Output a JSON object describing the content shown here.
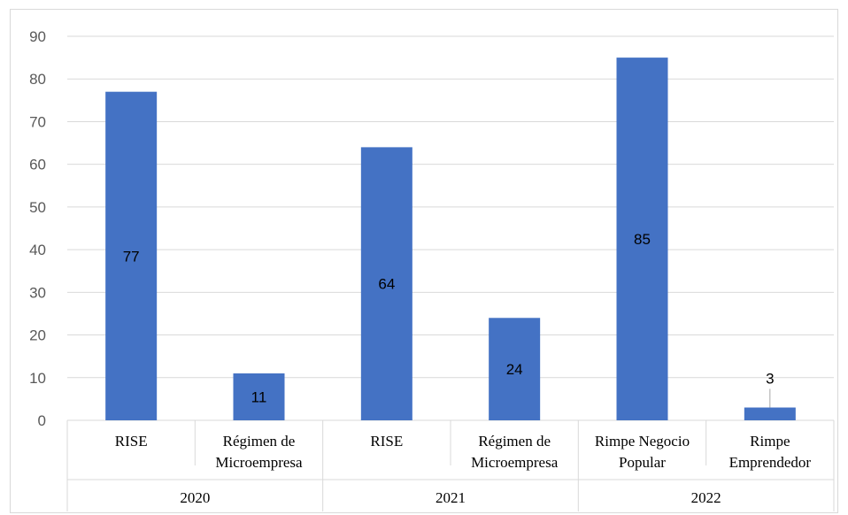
{
  "chart_data": {
    "type": "bar",
    "title": "",
    "xlabel": "",
    "ylabel": "",
    "ylim": [
      0,
      90
    ],
    "yticks": [
      0,
      10,
      20,
      30,
      40,
      50,
      60,
      70,
      80,
      90
    ],
    "grid": true,
    "bar_color": "#4472c4",
    "gridline_color": "#d9d9d9",
    "categories": [
      [
        "RISE"
      ],
      [
        "Régimen de",
        "Microempresa"
      ],
      [
        "RISE"
      ],
      [
        "Régimen de",
        "Microempresa"
      ],
      [
        "Rimpe Negocio",
        "Popular"
      ],
      [
        "Rimpe",
        "Emprendedor"
      ]
    ],
    "groups": [
      {
        "label": "2020",
        "span": 2
      },
      {
        "label": "2021",
        "span": 2
      },
      {
        "label": "2022",
        "span": 2
      }
    ],
    "values": [
      77,
      11,
      64,
      24,
      85,
      3
    ],
    "data_labels": [
      "77",
      "11",
      "64",
      "24",
      "85",
      "3"
    ]
  }
}
